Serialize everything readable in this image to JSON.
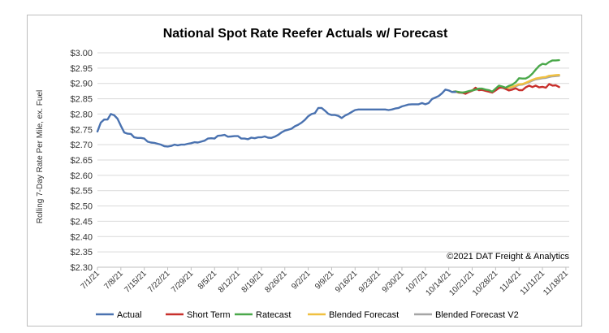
{
  "chart_data": {
    "type": "line",
    "title": "National Spot Rate Reefer Actuals w/ Forecast",
    "ylabel": "Rolling 7-Day Rate Per Mile, ex. Fuel",
    "xlabel": "",
    "ylim": [
      2.3,
      3.0
    ],
    "y_ticks": [
      "$2.30",
      "$2.35",
      "$2.40",
      "$2.45",
      "$2.50",
      "$2.55",
      "$2.60",
      "$2.65",
      "$2.70",
      "$2.75",
      "$2.80",
      "$2.85",
      "$2.90",
      "$2.95",
      "$3.00"
    ],
    "y_tick_values": [
      2.3,
      2.35,
      2.4,
      2.45,
      2.5,
      2.55,
      2.6,
      2.65,
      2.7,
      2.75,
      2.8,
      2.85,
      2.9,
      2.95,
      3.0
    ],
    "x_range_days": [
      0,
      141
    ],
    "x_ticks": [
      {
        "label": "7/1/21",
        "day": 0
      },
      {
        "label": "7/8/21",
        "day": 7
      },
      {
        "label": "7/15/21",
        "day": 14
      },
      {
        "label": "7/22/21",
        "day": 21
      },
      {
        "label": "7/29/21",
        "day": 28
      },
      {
        "label": "8/5/21",
        "day": 35
      },
      {
        "label": "8/12/21",
        "day": 42
      },
      {
        "label": "8/19/21",
        "day": 49
      },
      {
        "label": "8/26/21",
        "day": 56
      },
      {
        "label": "9/2/21",
        "day": 63
      },
      {
        "label": "9/9/21",
        "day": 70
      },
      {
        "label": "9/16/21",
        "day": 77
      },
      {
        "label": "9/23/21",
        "day": 84
      },
      {
        "label": "9/30/21",
        "day": 91
      },
      {
        "label": "10/7/21",
        "day": 98
      },
      {
        "label": "10/14/21",
        "day": 105
      },
      {
        "label": "10/21/21",
        "day": 112
      },
      {
        "label": "10/28/21",
        "day": 119
      },
      {
        "label": "11/4/21",
        "day": 126
      },
      {
        "label": "11/11/21",
        "day": 133
      },
      {
        "label": "11/18/21",
        "day": 140
      }
    ],
    "annotation": "©2021 DAT Freight & Analytics",
    "legend_position": "bottom",
    "series": [
      {
        "name": "Actual",
        "color": "#4a72b0",
        "points": [
          [
            0,
            2.743
          ],
          [
            1,
            2.772
          ],
          [
            2,
            2.782
          ],
          [
            3,
            2.782
          ],
          [
            4,
            2.8
          ],
          [
            5,
            2.796
          ],
          [
            6,
            2.785
          ],
          [
            7,
            2.762
          ],
          [
            8,
            2.74
          ],
          [
            9,
            2.736
          ],
          [
            10,
            2.735
          ],
          [
            11,
            2.724
          ],
          [
            12,
            2.722
          ],
          [
            13,
            2.722
          ],
          [
            14,
            2.72
          ],
          [
            15,
            2.71
          ],
          [
            16,
            2.707
          ],
          [
            17,
            2.706
          ],
          [
            18,
            2.703
          ],
          [
            19,
            2.7
          ],
          [
            20,
            2.695
          ],
          [
            21,
            2.694
          ],
          [
            22,
            2.696
          ],
          [
            23,
            2.7
          ],
          [
            24,
            2.698
          ],
          [
            25,
            2.7
          ],
          [
            26,
            2.7
          ],
          [
            27,
            2.703
          ],
          [
            28,
            2.705
          ],
          [
            29,
            2.708
          ],
          [
            30,
            2.707
          ],
          [
            31,
            2.71
          ],
          [
            32,
            2.713
          ],
          [
            33,
            2.72
          ],
          [
            34,
            2.721
          ],
          [
            35,
            2.72
          ],
          [
            36,
            2.729
          ],
          [
            37,
            2.73
          ],
          [
            38,
            2.732
          ],
          [
            39,
            2.726
          ],
          [
            40,
            2.727
          ],
          [
            41,
            2.728
          ],
          [
            42,
            2.728
          ],
          [
            43,
            2.72
          ],
          [
            44,
            2.72
          ],
          [
            45,
            2.718
          ],
          [
            46,
            2.723
          ],
          [
            47,
            2.721
          ],
          [
            48,
            2.724
          ],
          [
            49,
            2.724
          ],
          [
            50,
            2.727
          ],
          [
            51,
            2.723
          ],
          [
            52,
            2.722
          ],
          [
            53,
            2.726
          ],
          [
            54,
            2.732
          ],
          [
            55,
            2.74
          ],
          [
            56,
            2.746
          ],
          [
            57,
            2.749
          ],
          [
            58,
            2.752
          ],
          [
            59,
            2.76
          ],
          [
            60,
            2.765
          ],
          [
            61,
            2.772
          ],
          [
            62,
            2.781
          ],
          [
            63,
            2.793
          ],
          [
            64,
            2.8
          ],
          [
            65,
            2.803
          ],
          [
            66,
            2.82
          ],
          [
            67,
            2.82
          ],
          [
            68,
            2.811
          ],
          [
            69,
            2.801
          ],
          [
            70,
            2.797
          ],
          [
            71,
            2.797
          ],
          [
            72,
            2.794
          ],
          [
            73,
            2.787
          ],
          [
            74,
            2.795
          ],
          [
            75,
            2.8
          ],
          [
            76,
            2.807
          ],
          [
            77,
            2.813
          ],
          [
            78,
            2.815
          ],
          [
            79,
            2.815
          ],
          [
            80,
            2.815
          ],
          [
            81,
            2.815
          ],
          [
            82,
            2.815
          ],
          [
            83,
            2.815
          ],
          [
            84,
            2.815
          ],
          [
            85,
            2.815
          ],
          [
            86,
            2.815
          ],
          [
            87,
            2.813
          ],
          [
            88,
            2.815
          ],
          [
            89,
            2.818
          ],
          [
            90,
            2.82
          ],
          [
            91,
            2.825
          ],
          [
            92,
            2.828
          ],
          [
            93,
            2.831
          ],
          [
            94,
            2.832
          ],
          [
            95,
            2.832
          ],
          [
            96,
            2.832
          ],
          [
            97,
            2.836
          ],
          [
            98,
            2.832
          ],
          [
            99,
            2.836
          ],
          [
            100,
            2.849
          ],
          [
            101,
            2.854
          ],
          [
            102,
            2.859
          ],
          [
            103,
            2.868
          ],
          [
            104,
            2.88
          ],
          [
            105,
            2.877
          ],
          [
            106,
            2.872
          ],
          [
            107,
            2.872
          ]
        ]
      },
      {
        "name": "Short Term",
        "color": "#c8302c",
        "points": [
          [
            106,
            2.872
          ],
          [
            107,
            2.874
          ],
          [
            108,
            2.87
          ],
          [
            109,
            2.87
          ],
          [
            110,
            2.866
          ],
          [
            111,
            2.872
          ],
          [
            112,
            2.876
          ],
          [
            113,
            2.886
          ],
          [
            114,
            2.878
          ],
          [
            115,
            2.879
          ],
          [
            116,
            2.876
          ],
          [
            117,
            2.873
          ],
          [
            118,
            2.87
          ],
          [
            119,
            2.877
          ],
          [
            120,
            2.885
          ],
          [
            121,
            2.888
          ],
          [
            122,
            2.882
          ],
          [
            123,
            2.877
          ],
          [
            124,
            2.88
          ],
          [
            125,
            2.884
          ],
          [
            126,
            2.878
          ],
          [
            127,
            2.878
          ],
          [
            128,
            2.887
          ],
          [
            129,
            2.893
          ],
          [
            130,
            2.888
          ],
          [
            131,
            2.893
          ],
          [
            132,
            2.887
          ],
          [
            133,
            2.889
          ],
          [
            134,
            2.886
          ],
          [
            135,
            2.898
          ],
          [
            136,
            2.893
          ],
          [
            137,
            2.894
          ],
          [
            138,
            2.888
          ]
        ]
      },
      {
        "name": "Ratecast",
        "color": "#4aa84a",
        "points": [
          [
            106,
            2.872
          ],
          [
            107,
            2.874
          ],
          [
            108,
            2.872
          ],
          [
            109,
            2.87
          ],
          [
            110,
            2.872
          ],
          [
            111,
            2.875
          ],
          [
            112,
            2.877
          ],
          [
            113,
            2.88
          ],
          [
            114,
            2.883
          ],
          [
            115,
            2.883
          ],
          [
            116,
            2.88
          ],
          [
            117,
            2.878
          ],
          [
            118,
            2.873
          ],
          [
            119,
            2.883
          ],
          [
            120,
            2.893
          ],
          [
            121,
            2.89
          ],
          [
            122,
            2.886
          ],
          [
            123,
            2.892
          ],
          [
            124,
            2.896
          ],
          [
            125,
            2.904
          ],
          [
            126,
            2.917
          ],
          [
            127,
            2.916
          ],
          [
            128,
            2.916
          ],
          [
            129,
            2.922
          ],
          [
            130,
            2.932
          ],
          [
            131,
            2.945
          ],
          [
            132,
            2.957
          ],
          [
            133,
            2.964
          ],
          [
            134,
            2.962
          ],
          [
            135,
            2.97
          ],
          [
            136,
            2.975
          ],
          [
            137,
            2.975
          ],
          [
            138,
            2.976
          ]
        ]
      },
      {
        "name": "Blended Forecast",
        "color": "#f0c040",
        "points": [
          [
            106,
            2.872
          ],
          [
            107,
            2.873
          ],
          [
            108,
            2.872
          ],
          [
            109,
            2.87
          ],
          [
            110,
            2.87
          ],
          [
            111,
            2.873
          ],
          [
            112,
            2.878
          ],
          [
            113,
            2.881
          ],
          [
            114,
            2.882
          ],
          [
            115,
            2.88
          ],
          [
            116,
            2.876
          ],
          [
            117,
            2.874
          ],
          [
            118,
            2.873
          ],
          [
            119,
            2.882
          ],
          [
            120,
            2.889
          ],
          [
            121,
            2.887
          ],
          [
            122,
            2.884
          ],
          [
            123,
            2.886
          ],
          [
            124,
            2.889
          ],
          [
            125,
            2.893
          ],
          [
            126,
            2.897
          ],
          [
            127,
            2.898
          ],
          [
            128,
            2.902
          ],
          [
            129,
            2.907
          ],
          [
            130,
            2.912
          ],
          [
            131,
            2.916
          ],
          [
            132,
            2.918
          ],
          [
            133,
            2.92
          ],
          [
            134,
            2.921
          ],
          [
            135,
            2.925
          ],
          [
            136,
            2.926
          ],
          [
            137,
            2.927
          ],
          [
            138,
            2.928
          ]
        ]
      },
      {
        "name": "Blended Forecast V2",
        "color": "#a5a5a5",
        "points": [
          [
            106,
            2.872
          ],
          [
            107,
            2.873
          ],
          [
            108,
            2.871
          ],
          [
            109,
            2.869
          ],
          [
            110,
            2.869
          ],
          [
            111,
            2.872
          ],
          [
            112,
            2.876
          ],
          [
            113,
            2.88
          ],
          [
            114,
            2.88
          ],
          [
            115,
            2.878
          ],
          [
            116,
            2.876
          ],
          [
            117,
            2.873
          ],
          [
            118,
            2.872
          ],
          [
            119,
            2.88
          ],
          [
            120,
            2.887
          ],
          [
            121,
            2.885
          ],
          [
            122,
            2.882
          ],
          [
            123,
            2.884
          ],
          [
            124,
            2.887
          ],
          [
            125,
            2.891
          ],
          [
            126,
            2.895
          ],
          [
            127,
            2.896
          ],
          [
            128,
            2.9
          ],
          [
            129,
            2.904
          ],
          [
            130,
            2.909
          ],
          [
            131,
            2.913
          ],
          [
            132,
            2.915
          ],
          [
            133,
            2.917
          ],
          [
            134,
            2.918
          ],
          [
            135,
            2.921
          ],
          [
            136,
            2.923
          ],
          [
            137,
            2.924
          ],
          [
            138,
            2.925
          ]
        ]
      }
    ]
  }
}
